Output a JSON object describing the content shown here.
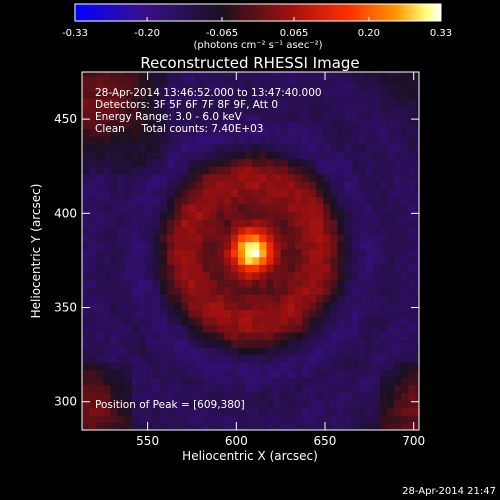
{
  "chart_data": {
    "type": "heatmap",
    "title": "Reconstructed RHESSI Image",
    "xlabel": "Heliocentric X (arcsec)",
    "ylabel": "Heliocentric Y (arcsec)",
    "xlim": [
      513,
      703
    ],
    "ylim": [
      285,
      475
    ],
    "x_ticks": [
      550,
      600,
      650,
      700
    ],
    "y_ticks": [
      300,
      350,
      400,
      450
    ],
    "colorbar": {
      "range": [
        -0.33,
        0.33
      ],
      "ticks": [
        "-0.33",
        "-0.20",
        "-0.065",
        "0.065",
        "0.20",
        "0.33"
      ],
      "unit_label": "(photons cm⁻² s⁻¹ asec⁻²)",
      "colors": [
        "#0000ff",
        "#3a0f8f",
        "#1a1020",
        "#9a1010",
        "#ff3000",
        "#ff9a00",
        "#ffff80",
        "#ffffff"
      ]
    },
    "annotations": [
      "28-Apr-2014 13:46:52.000 to 13:47:40.000",
      "Detectors: 3F 5F 6F 7F 8F 9F, Att 0",
      "Energy Range: 3.0 - 6.0 keV",
      "Clean     Total counts: 7.40E+03"
    ],
    "peak_label": "Position of Peak = [609,380]",
    "peak": {
      "x": 609,
      "y": 380
    },
    "footer_timestamp": "28-Apr-2014 21:47"
  }
}
